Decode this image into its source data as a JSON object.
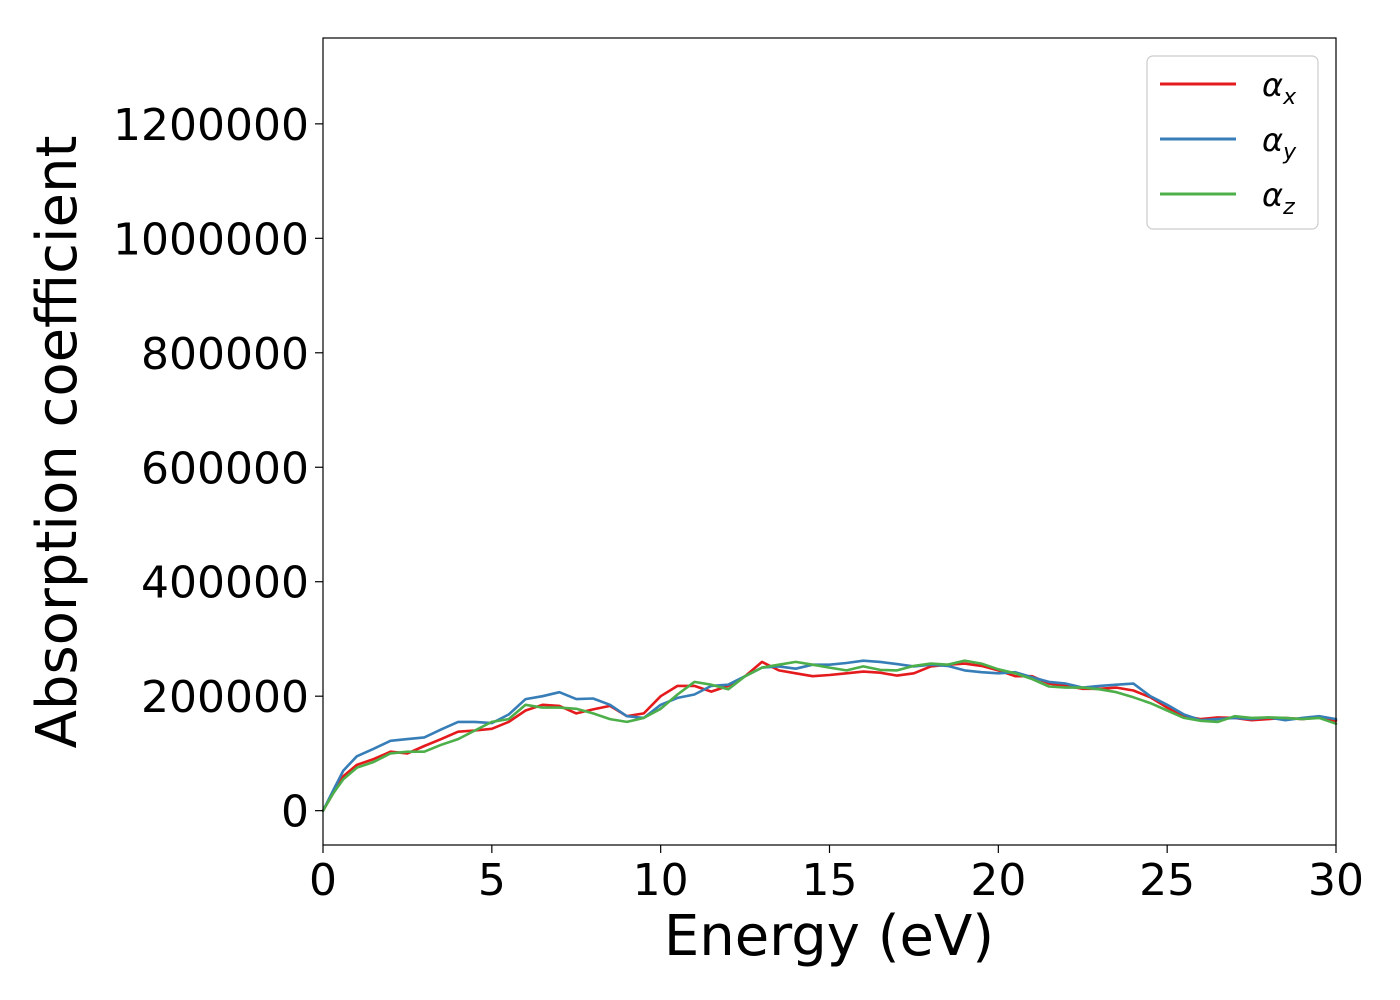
{
  "chart_data": {
    "type": "line",
    "title": "",
    "xlabel": "Energy (eV)",
    "ylabel": "Absorption coefficient",
    "xlim": [
      0,
      30
    ],
    "ylim": [
      -60000,
      1350000
    ],
    "xticks": [
      0,
      5,
      10,
      15,
      20,
      25,
      30
    ],
    "yticks": [
      0,
      200000,
      400000,
      600000,
      800000,
      1000000,
      1200000
    ],
    "xtick_labels": [
      "0",
      "5",
      "10",
      "15",
      "20",
      "25",
      "30"
    ],
    "ytick_labels": [
      "0",
      "200000",
      "400000",
      "600000",
      "800000",
      "1000000",
      "1200000"
    ],
    "grid": false,
    "legend_position": "top-right",
    "series": [
      {
        "name": "α",
        "subscript": "x",
        "color": "#e41a1c",
        "x": [
          0,
          0.3,
          0.6,
          1.0,
          1.5,
          2.0,
          2.5,
          3.0,
          3.5,
          4.0,
          4.5,
          5.0,
          5.5,
          6.0,
          6.5,
          7.0,
          7.5,
          8.0,
          8.5,
          9.0,
          9.5,
          10.0,
          10.5,
          11.0,
          11.5,
          12.0,
          12.5,
          13.0,
          13.5,
          14.0,
          14.5,
          15.0,
          15.5,
          16.0,
          16.5,
          17.0,
          17.5,
          18.0,
          18.5,
          19.0,
          19.5,
          20.0,
          20.5,
          21.0,
          21.5,
          22.0,
          22.5,
          23.0,
          23.5,
          24.0,
          24.5,
          25.0,
          25.5,
          26.0,
          26.5,
          27.0,
          27.5,
          28.0,
          28.5,
          29.0,
          29.5,
          30.0
        ],
        "y": [
          0,
          30000,
          60000,
          80000,
          90000,
          103000,
          100000,
          113000,
          125000,
          138000,
          140000,
          143000,
          155000,
          175000,
          185000,
          183000,
          170000,
          177000,
          183000,
          165000,
          170000,
          200000,
          218000,
          218000,
          208000,
          218000,
          235000,
          260000,
          245000,
          240000,
          235000,
          237000,
          240000,
          243000,
          241000,
          236000,
          240000,
          252000,
          255000,
          257000,
          253000,
          245000,
          235000,
          235000,
          222000,
          218000,
          213000,
          213000,
          215000,
          210000,
          198000,
          180000,
          165000,
          160000,
          163000,
          162000,
          158000,
          160000,
          162000,
          160000,
          163000,
          157000
        ]
      },
      {
        "name": "α",
        "subscript": "y",
        "color": "#377eb8",
        "x": [
          0,
          0.3,
          0.6,
          1.0,
          1.5,
          2.0,
          2.5,
          3.0,
          3.5,
          4.0,
          4.5,
          5.0,
          5.5,
          6.0,
          6.5,
          7.0,
          7.5,
          8.0,
          8.5,
          9.0,
          9.5,
          10.0,
          10.5,
          11.0,
          11.5,
          12.0,
          12.5,
          13.0,
          13.5,
          14.0,
          14.5,
          15.0,
          15.5,
          16.0,
          16.5,
          17.0,
          17.5,
          18.0,
          18.5,
          19.0,
          19.5,
          20.0,
          20.5,
          21.0,
          21.5,
          22.0,
          22.5,
          23.0,
          23.5,
          24.0,
          24.5,
          25.0,
          25.5,
          26.0,
          26.5,
          27.0,
          27.5,
          28.0,
          28.5,
          29.0,
          29.5,
          30.0
        ],
        "y": [
          0,
          35000,
          70000,
          95000,
          108000,
          122000,
          125000,
          128000,
          142000,
          155000,
          155000,
          153000,
          168000,
          195000,
          200000,
          207000,
          195000,
          196000,
          185000,
          165000,
          162000,
          185000,
          197000,
          203000,
          218000,
          220000,
          235000,
          250000,
          252000,
          248000,
          255000,
          255000,
          258000,
          262000,
          260000,
          256000,
          252000,
          255000,
          253000,
          245000,
          242000,
          240000,
          242000,
          233000,
          225000,
          222000,
          215000,
          218000,
          220000,
          222000,
          200000,
          185000,
          168000,
          158000,
          160000,
          162000,
          160000,
          163000,
          158000,
          162000,
          165000,
          160000
        ]
      },
      {
        "name": "α",
        "subscript": "z",
        "color": "#4daf4a",
        "x": [
          0,
          0.3,
          0.6,
          1.0,
          1.5,
          2.0,
          2.5,
          3.0,
          3.5,
          4.0,
          4.5,
          5.0,
          5.5,
          6.0,
          6.5,
          7.0,
          7.5,
          8.0,
          8.5,
          9.0,
          9.5,
          10.0,
          10.5,
          11.0,
          11.5,
          12.0,
          12.5,
          13.0,
          13.5,
          14.0,
          14.5,
          15.0,
          15.5,
          16.0,
          16.5,
          17.0,
          17.5,
          18.0,
          18.5,
          19.0,
          19.5,
          20.0,
          20.5,
          21.0,
          21.5,
          22.0,
          22.5,
          23.0,
          23.5,
          24.0,
          24.5,
          25.0,
          25.5,
          26.0,
          26.5,
          27.0,
          27.5,
          28.0,
          28.5,
          29.0,
          29.5,
          30.0
        ],
        "y": [
          0,
          30000,
          55000,
          75000,
          85000,
          100000,
          103000,
          103000,
          115000,
          125000,
          140000,
          155000,
          160000,
          185000,
          180000,
          180000,
          178000,
          170000,
          160000,
          155000,
          162000,
          178000,
          203000,
          225000,
          220000,
          212000,
          235000,
          250000,
          255000,
          260000,
          255000,
          250000,
          245000,
          252000,
          246000,
          245000,
          253000,
          257000,
          255000,
          262000,
          257000,
          247000,
          240000,
          230000,
          217000,
          215000,
          215000,
          212000,
          207000,
          198000,
          188000,
          175000,
          162000,
          157000,
          155000,
          165000,
          162000,
          163000,
          162000,
          160000,
          162000,
          152000
        ]
      }
    ]
  }
}
